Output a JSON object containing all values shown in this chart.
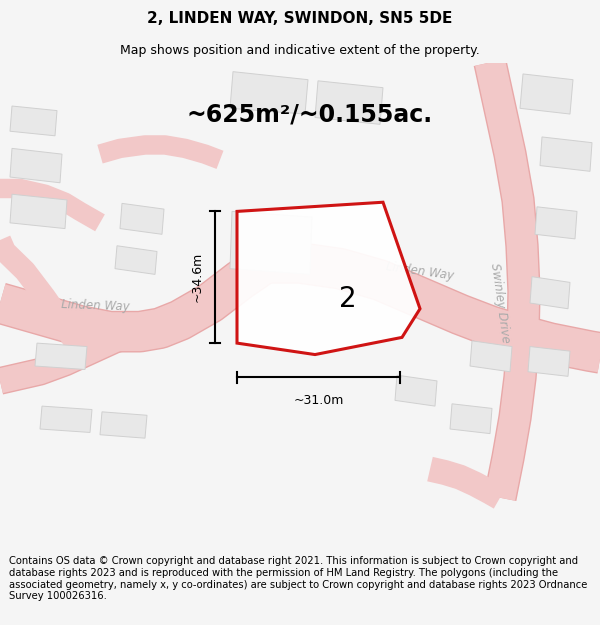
{
  "title": "2, LINDEN WAY, SWINDON, SN5 5DE",
  "subtitle": "Map shows position and indicative extent of the property.",
  "area_text": "~625m²/~0.155ac.",
  "dim_width": "~31.0m",
  "dim_height": "~34.6m",
  "plot_number": "2",
  "footer": "Contains OS data © Crown copyright and database right 2021. This information is subject to Crown copyright and database rights 2023 and is reproduced with the permission of HM Land Registry. The polygons (including the associated geometry, namely x, y co-ordinates) are subject to Crown copyright and database rights 2023 Ordnance Survey 100026316.",
  "bg_color": "#f5f5f5",
  "map_bg": "#f8f8f8",
  "road_fill": "#f2c8c8",
  "road_edge": "#e8a8a8",
  "building_fill": "#e8e8e8",
  "building_edge": "#d0d0d0",
  "plot_fill": "#ffffff",
  "plot_edge": "#cc0000",
  "plot_edge_width": 2.2,
  "dim_line_color": "#000000",
  "road_label_color": "#aaaaaa",
  "title_fontsize": 11,
  "subtitle_fontsize": 9,
  "area_fontsize": 17,
  "plot_label_fontsize": 20,
  "dim_fontsize": 9,
  "footer_fontsize": 7.2,
  "road_label_fontsize": 8.5
}
